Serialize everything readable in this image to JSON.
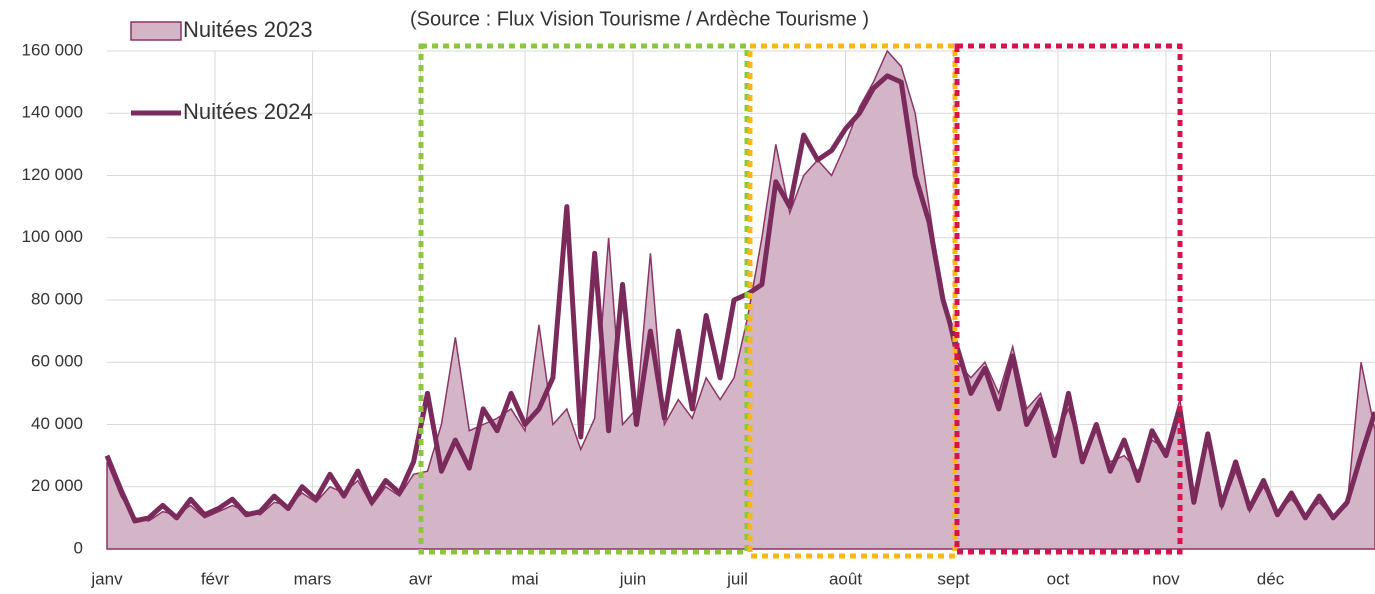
{
  "chart_data": {
    "type": "line",
    "subtitle": "(Source : Flux Vision Tourisme / Ardèche Tourisme )",
    "x": [
      1,
      5,
      9,
      13,
      17,
      21,
      25,
      29,
      33,
      37,
      41,
      45,
      49,
      53,
      57,
      61,
      65,
      69,
      73,
      77,
      81,
      85,
      89,
      93,
      97,
      101,
      105,
      109,
      113,
      117,
      121,
      125,
      129,
      133,
      137,
      141,
      145,
      149,
      153,
      157,
      161,
      165,
      169,
      173,
      177,
      181,
      185,
      189,
      193,
      197,
      201,
      205,
      209,
      213,
      217,
      221,
      225,
      229,
      233,
      237,
      241,
      245,
      249,
      253,
      257,
      261,
      265,
      269,
      273,
      277,
      281,
      285,
      289,
      293,
      297,
      301,
      305,
      309,
      313,
      317,
      321,
      325,
      329,
      333,
      337,
      341,
      345,
      349,
      353,
      357,
      361,
      365
    ],
    "series": [
      {
        "name": "Nuitées 2023",
        "kind": "area",
        "color": "#d4b5c8",
        "stroke": "#8a3566",
        "values": [
          28000,
          17000,
          10000,
          9000,
          12000,
          11000,
          14000,
          10000,
          12000,
          14000,
          12000,
          11000,
          15000,
          14000,
          18000,
          15000,
          20000,
          18000,
          22000,
          14000,
          20000,
          17000,
          24000,
          25000,
          40000,
          68000,
          38000,
          40000,
          42000,
          45000,
          38000,
          72000,
          40000,
          45000,
          32000,
          42000,
          100000,
          40000,
          45000,
          95000,
          40000,
          48000,
          42000,
          55000,
          48000,
          55000,
          75000,
          100000,
          130000,
          108000,
          120000,
          125000,
          120000,
          130000,
          142000,
          150000,
          160000,
          155000,
          140000,
          110000,
          80000,
          60000,
          55000,
          60000,
          50000,
          65000,
          45000,
          50000,
          35000,
          45000,
          30000,
          38000,
          28000,
          30000,
          25000,
          35000,
          32000,
          48000,
          16000,
          35000,
          13000,
          25000,
          12000,
          20000,
          12000,
          16000,
          11000,
          15000,
          10000,
          14000,
          60000,
          38000
        ]
      },
      {
        "name": "Nuitées 2024",
        "kind": "line",
        "color": "#7b2a5c",
        "values": [
          30000,
          19000,
          9000,
          10000,
          14000,
          10000,
          16000,
          11000,
          13000,
          16000,
          11000,
          12000,
          17000,
          13000,
          20000,
          16000,
          24000,
          17000,
          25000,
          15000,
          22000,
          18000,
          28000,
          50000,
          25000,
          35000,
          26000,
          45000,
          38000,
          50000,
          40000,
          45000,
          55000,
          110000,
          36000,
          95000,
          38000,
          85000,
          40000,
          70000,
          42000,
          70000,
          45000,
          75000,
          55000,
          80000,
          82000,
          85000,
          118000,
          110000,
          133000,
          125000,
          128000,
          135000,
          140000,
          148000,
          152000,
          150000,
          120000,
          105000,
          80000,
          65000,
          50000,
          58000,
          45000,
          62000,
          40000,
          48000,
          30000,
          50000,
          28000,
          40000,
          25000,
          35000,
          22000,
          38000,
          30000,
          45000,
          15000,
          37000,
          14000,
          28000,
          13000,
          22000,
          11000,
          18000,
          10000,
          17000,
          10000,
          15000,
          30000,
          44000
        ]
      }
    ],
    "xlim": [
      1,
      365
    ],
    "xticks": [
      {
        "value": 1,
        "label": "janv"
      },
      {
        "value": 32,
        "label": "févr"
      },
      {
        "value": 60,
        "label": "mars"
      },
      {
        "value": 91,
        "label": "avr"
      },
      {
        "value": 121,
        "label": "mai"
      },
      {
        "value": 152,
        "label": "juin"
      },
      {
        "value": 182,
        "label": "juil"
      },
      {
        "value": 213,
        "label": "août"
      },
      {
        "value": 244,
        "label": "sept"
      },
      {
        "value": 274,
        "label": "oct"
      },
      {
        "value": 305,
        "label": "nov"
      },
      {
        "value": 335,
        "label": "déc"
      }
    ],
    "ylim": [
      0,
      160000
    ],
    "yticks": [
      0,
      {
        "value": 20000,
        "label": "20 000"
      },
      {
        "value": 40000,
        "label": "40 000"
      },
      {
        "value": 60000,
        "label": "60 000"
      },
      {
        "value": 80000,
        "label": "80 000"
      },
      {
        "value": 100000,
        "label": "100 000"
      },
      {
        "value": 120000,
        "label": "120 000"
      },
      {
        "value": 140000,
        "label": "140 000"
      },
      {
        "value": 160000,
        "label": "160 000"
      }
    ],
    "grid": true
  }
}
